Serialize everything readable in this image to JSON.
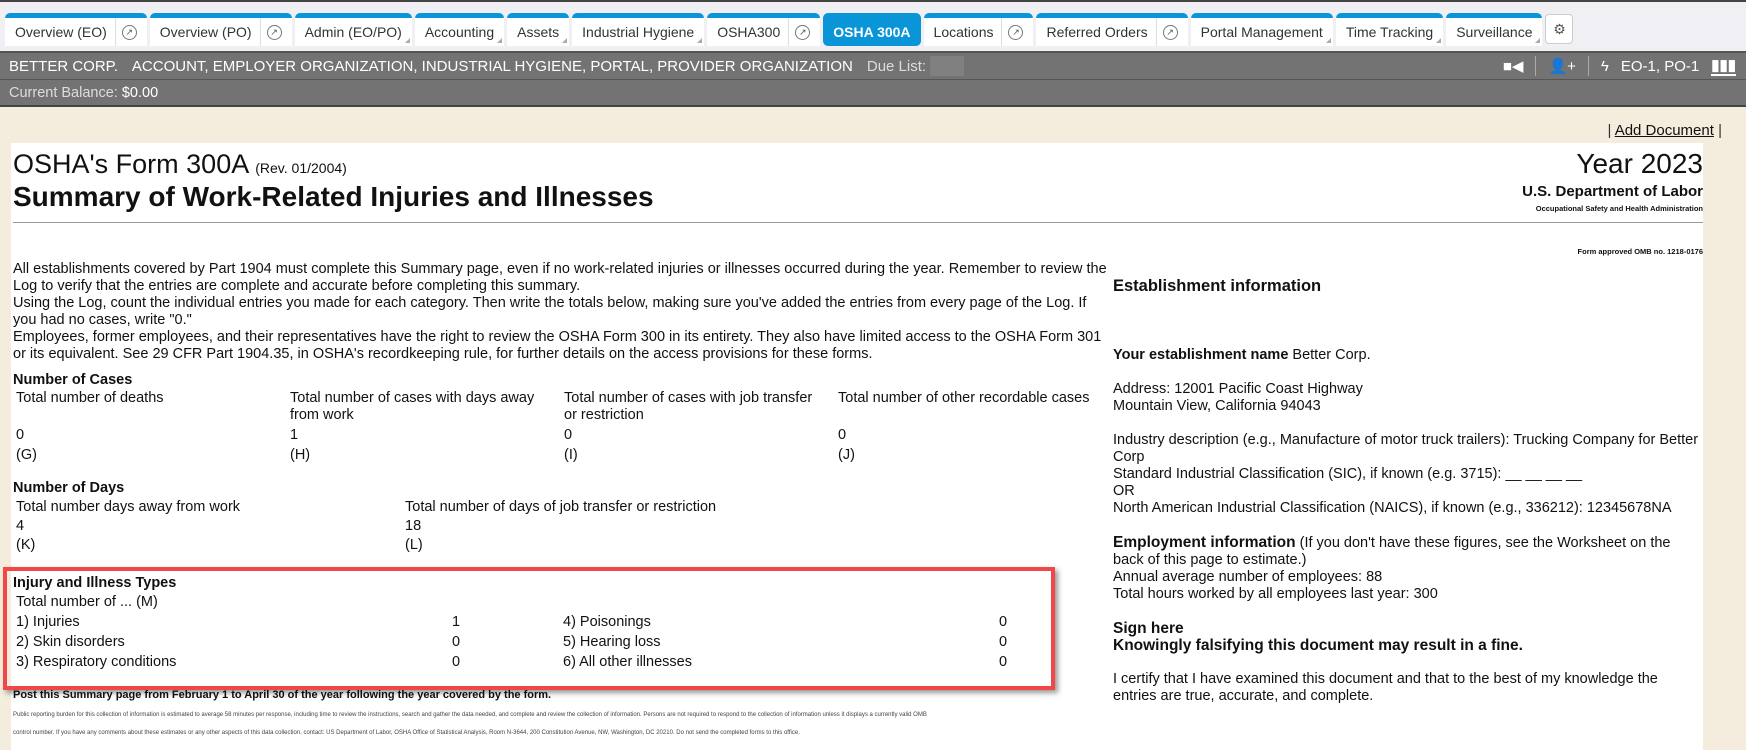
{
  "tabs": [
    {
      "label": "Overview (EO)",
      "ext": true
    },
    {
      "label": "Overview (PO)",
      "ext": true
    },
    {
      "label": "Admin (EO/PO)"
    },
    {
      "label": "Accounting"
    },
    {
      "label": "Assets"
    },
    {
      "label": "Industrial Hygiene"
    },
    {
      "label": "OSHA300",
      "ext": true
    },
    {
      "label": "OSHA 300A",
      "active": true
    },
    {
      "label": "Locations",
      "ext": true
    },
    {
      "label": "Referred Orders",
      "ext": true
    },
    {
      "label": "Portal Management"
    },
    {
      "label": "Time Tracking"
    },
    {
      "label": "Surveillance"
    }
  ],
  "header": {
    "company": "BETTER CORP.",
    "roles": "ACCOUNT, EMPLOYER ORGANIZATION, INDUSTRIAL HYGIENE, PORTAL, PROVIDER ORGANIZATION",
    "due_list_label": "Due List:",
    "org_codes": "EO-1, PO-1",
    "balance_label": "Current Balance:",
    "balance": "$0.00"
  },
  "actions": {
    "add_document": "Add Document"
  },
  "form": {
    "title": "OSHA's Form 300A",
    "rev": "(Rev. 01/2004)",
    "subtitle": "Summary of Work-Related Injuries and Illnesses",
    "year": "Year 2023",
    "dept": "U.S. Department of Labor",
    "agency": "Occupational Safety and Health Administration",
    "omb": "Form approved OMB no. 1218-0176",
    "intro": [
      "All establishments covered by Part 1904 must complete this Summary page, even if no work-related injuries or illnesses occurred during the year. Remember to review the Log to verify that the entries are complete and accurate before completing this summary.",
      "Using the Log, count the individual entries you made for each category. Then write the totals below, making sure you've added the entries from every page of the Log. If you had no cases, write \"0.\"",
      "Employees, former employees, and their representatives have the right to review the OSHA Form 300 in its entirety. They also have limited access to the OSHA Form 301 or its equivalent. See 29 CFR Part 1904.35, in OSHA's recordkeeping rule, for further details on the access provisions for these forms."
    ],
    "cases": {
      "heading": "Number of Cases",
      "items": [
        {
          "label": "Total number of deaths",
          "value": "0",
          "code": "(G)"
        },
        {
          "label": "Total number of cases with days away from work",
          "value": "1",
          "code": "(H)"
        },
        {
          "label": "Total number of cases with job transfer or restriction",
          "value": "0",
          "code": "(I)"
        },
        {
          "label": "Total number of other recordable cases",
          "value": "0",
          "code": "(J)"
        }
      ]
    },
    "days": {
      "heading": "Number of Days",
      "items": [
        {
          "label": "Total number days away from work",
          "value": "4",
          "code": "(K)"
        },
        {
          "label": "Total number of days of job transfer or restriction",
          "value": "18",
          "code": "(L)"
        }
      ]
    },
    "types": {
      "heading": "Injury and Illness Types",
      "sub": "Total number of ... (M)",
      "items": [
        {
          "label": "1) Injuries",
          "value": "1"
        },
        {
          "label": "2) Skin disorders",
          "value": "0"
        },
        {
          "label": "3) Respiratory conditions",
          "value": "0"
        },
        {
          "label": "4) Poisonings",
          "value": "0"
        },
        {
          "label": "5) Hearing loss",
          "value": "0"
        },
        {
          "label": "6) All other illnesses",
          "value": "0"
        }
      ]
    },
    "post": "Post this Summary page from February 1 to April 30 of the year following the year covered by the form.",
    "burden1": "Public reporting burden for this collection of information is estimated to average 58 minutes per response, including time to review the instructions, search and gather the data needed, and complete and review the collection of information. Persons are not required to respond to the collection of information unless it displays a currently valid OMB",
    "burden2": "control number. If you have any comments about these estimates or any other aspects of this data collection, contact: US Department of Labor, OSHA Office of Statistical Analysis, Room N-3644, 200 Constitution Avenue, NW, Washington, DC 20210. Do not send the completed forms to this office.",
    "est": {
      "heading": "Establishment information",
      "name_label": "Your establishment name",
      "name": "Better Corp.",
      "address1": "Address: 12001 Pacific Coast Highway",
      "address2": "Mountain View, California 94043",
      "industry": "Industry description (e.g., Manufacture of motor truck trailers): Trucking Company for Better Corp",
      "sic": "Standard Industrial Classification (SIC), if known (e.g. 3715): __ __ __ __",
      "or": "OR",
      "naics": "North American Industrial Classification (NAICS), if known (e.g., 336212): 12345678NA",
      "emp_heading": "Employment information",
      "emp_note": "(If you don't have these figures, see the Worksheet on the back of this page to estimate.)",
      "employees": "Annual average number of employees: 88",
      "hours": "Total hours worked by all employees last year: 300",
      "sign_heading": "Sign here",
      "warning": "Knowingly falsifying this document may result in a fine.",
      "certify": "I certify that I have examined this document and that to the best of my knowledge the entries are true, accurate, and complete."
    }
  }
}
